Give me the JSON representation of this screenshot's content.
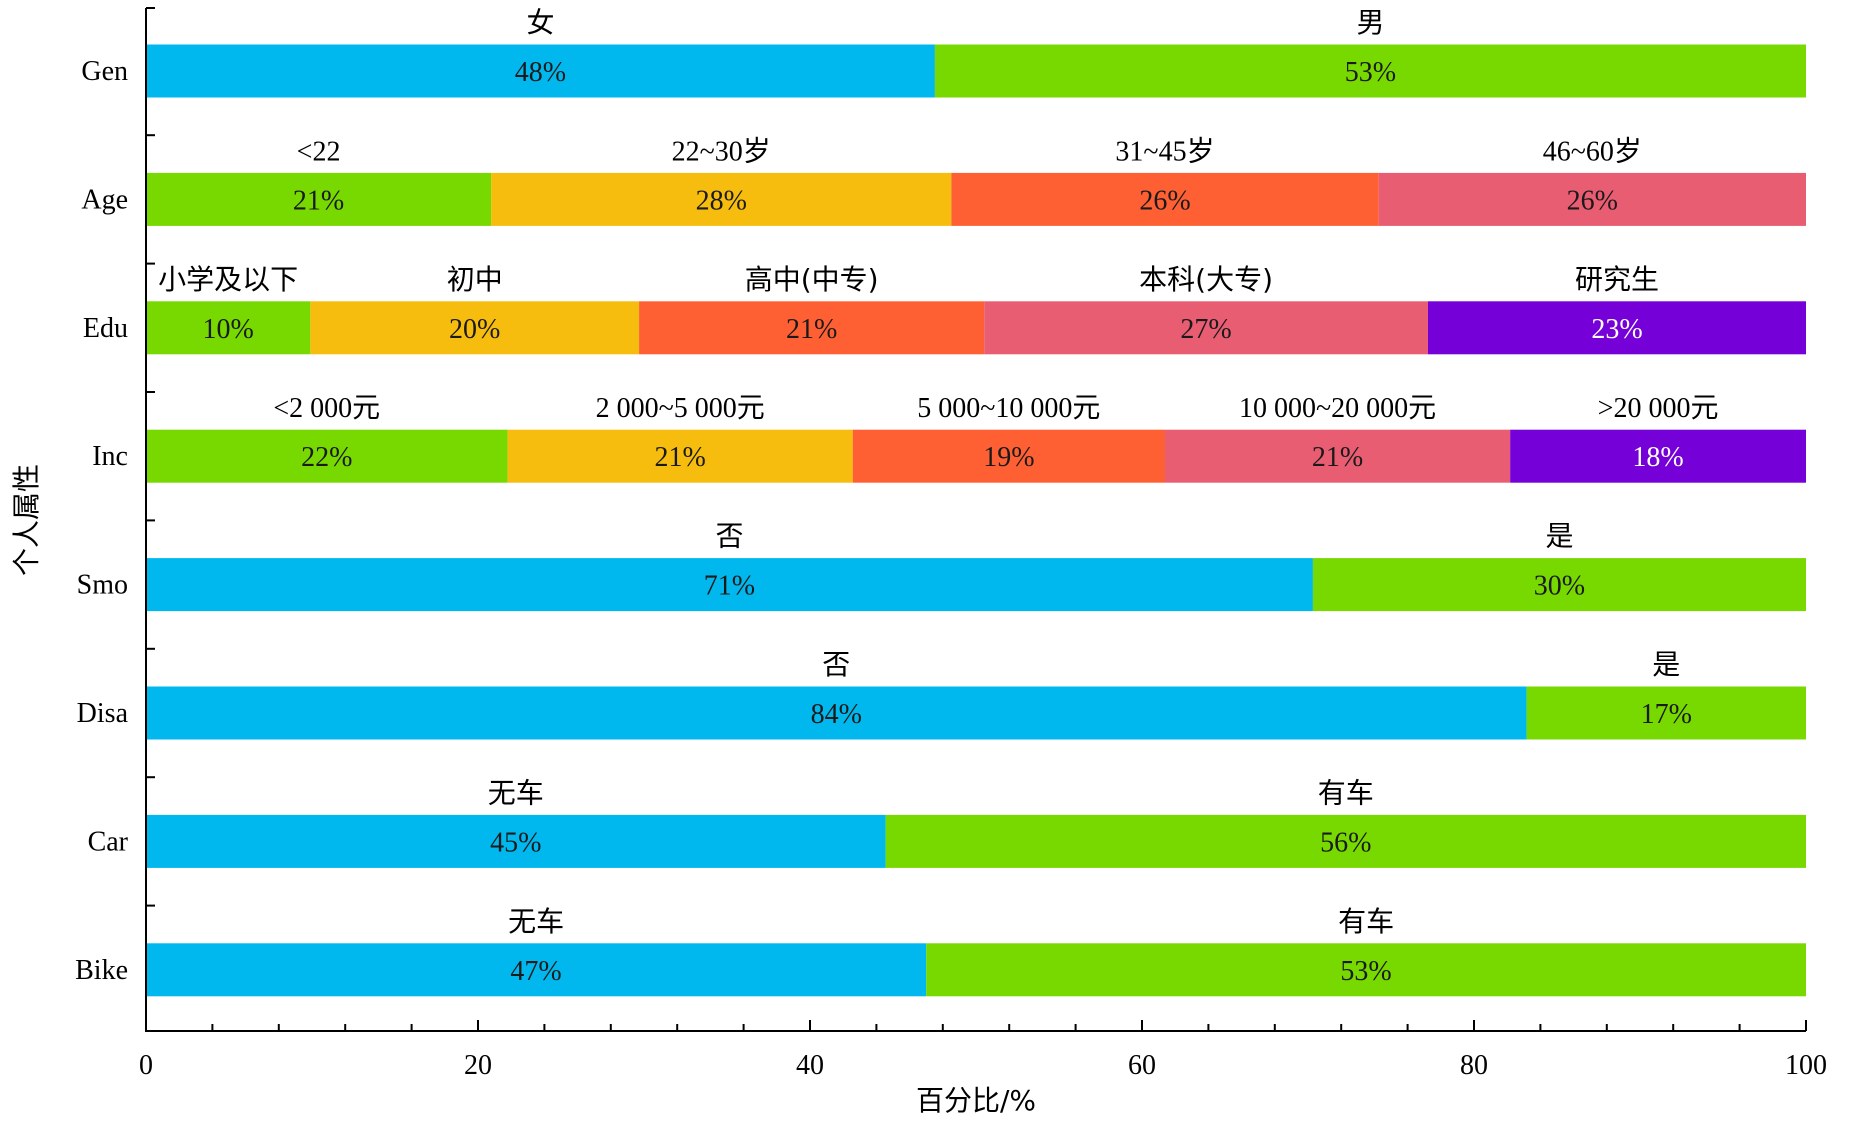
{
  "chart_data": {
    "type": "bar",
    "orientation": "horizontal",
    "stacked": true,
    "xlabel": "百分比/%",
    "ylabel": "个人属性",
    "xlim": [
      0,
      100
    ],
    "xticks": [
      "0",
      "20",
      "40",
      "60",
      "80",
      "100"
    ],
    "grid": false,
    "rows": [
      {
        "category": "Gen",
        "segments": [
          {
            "label": "女",
            "value": 48,
            "value_label": "48%",
            "color": "#00b8ee"
          },
          {
            "label": "男",
            "value": 53,
            "value_label": "53%",
            "color": "#77d900"
          }
        ]
      },
      {
        "category": "Age",
        "segments": [
          {
            "label": "<22",
            "value": 21,
            "value_label": "21%",
            "color": "#77d900"
          },
          {
            "label": "22~30岁",
            "value": 28,
            "value_label": "28%",
            "color": "#f7bd0e"
          },
          {
            "label": "31~45岁",
            "value": 26,
            "value_label": "26%",
            "color": "#ff6033"
          },
          {
            "label": "46~60岁",
            "value": 26,
            "value_label": "26%",
            "color": "#e85d72"
          }
        ]
      },
      {
        "category": "Edu",
        "segments": [
          {
            "label": "小学及以下",
            "value": 10,
            "value_label": "10%",
            "color": "#77d900"
          },
          {
            "label": "初中",
            "value": 20,
            "value_label": "20%",
            "color": "#f7bd0e"
          },
          {
            "label": "高中(中专)",
            "value": 21,
            "value_label": "21%",
            "color": "#ff6033"
          },
          {
            "label": "本科(大专)",
            "value": 27,
            "value_label": "27%",
            "color": "#e85d72"
          },
          {
            "label": "研究生",
            "value": 23,
            "value_label": "23%",
            "color": "#7500d8"
          }
        ]
      },
      {
        "category": "Inc",
        "segments": [
          {
            "label": "<2 000元",
            "value": 22,
            "value_label": "22%",
            "color": "#77d900"
          },
          {
            "label": "2 000~5 000元",
            "value": 21,
            "value_label": "21%",
            "color": "#f7bd0e"
          },
          {
            "label": "5 000~10 000元",
            "value": 19,
            "value_label": "19%",
            "color": "#ff6033"
          },
          {
            "label": "10 000~20 000元",
            "value": 21,
            "value_label": "21%",
            "color": "#e85d72"
          },
          {
            "label": ">20 000元",
            "value": 18,
            "value_label": "18%",
            "color": "#7500d8"
          }
        ]
      },
      {
        "category": "Smo",
        "segments": [
          {
            "label": "否",
            "value": 71,
            "value_label": "71%",
            "color": "#00b8ee"
          },
          {
            "label": "是",
            "value": 30,
            "value_label": "30%",
            "color": "#77d900"
          }
        ]
      },
      {
        "category": "Disa",
        "segments": [
          {
            "label": "否",
            "value": 84,
            "value_label": "84%",
            "color": "#00b8ee"
          },
          {
            "label": "是",
            "value": 17,
            "value_label": "17%",
            "color": "#77d900"
          }
        ]
      },
      {
        "category": "Car",
        "segments": [
          {
            "label": "无车",
            "value": 45,
            "value_label": "45%",
            "color": "#00b8ee"
          },
          {
            "label": "有车",
            "value": 56,
            "value_label": "56%",
            "color": "#77d900"
          }
        ]
      },
      {
        "category": "Bike",
        "segments": [
          {
            "label": "无车",
            "value": 47,
            "value_label": "47%",
            "color": "#00b8ee"
          },
          {
            "label": "有车",
            "value": 53,
            "value_label": "53%",
            "color": "#77d900"
          }
        ]
      }
    ]
  }
}
